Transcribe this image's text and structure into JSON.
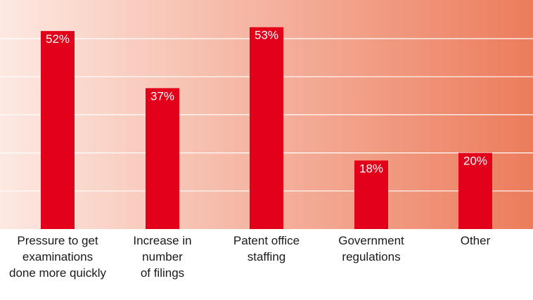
{
  "chart_data": {
    "type": "bar",
    "categories": [
      [
        "Pressure to get",
        "examinations",
        "done more quickly"
      ],
      [
        "Increase in",
        "number",
        "of filings"
      ],
      [
        "Patent office",
        "staffing"
      ],
      [
        "Government",
        "regulations"
      ],
      [
        "Other"
      ]
    ],
    "values": [
      52,
      37,
      53,
      18,
      20
    ],
    "value_labels": [
      "52%",
      "37%",
      "53%",
      "18%",
      "20%"
    ],
    "unit": "%",
    "ylim": [
      0,
      60
    ],
    "gridlines": [
      10,
      20,
      30,
      40,
      50
    ],
    "grid": true,
    "title": "",
    "xlabel": "",
    "ylabel": ""
  },
  "colors": {
    "bar": "#e2001a",
    "background_light": "#fde9e2",
    "background_dark": "#ec7c5c",
    "grid": "#ffffff",
    "label_text": "#1a1a1a",
    "value_text": "#ffffff"
  }
}
